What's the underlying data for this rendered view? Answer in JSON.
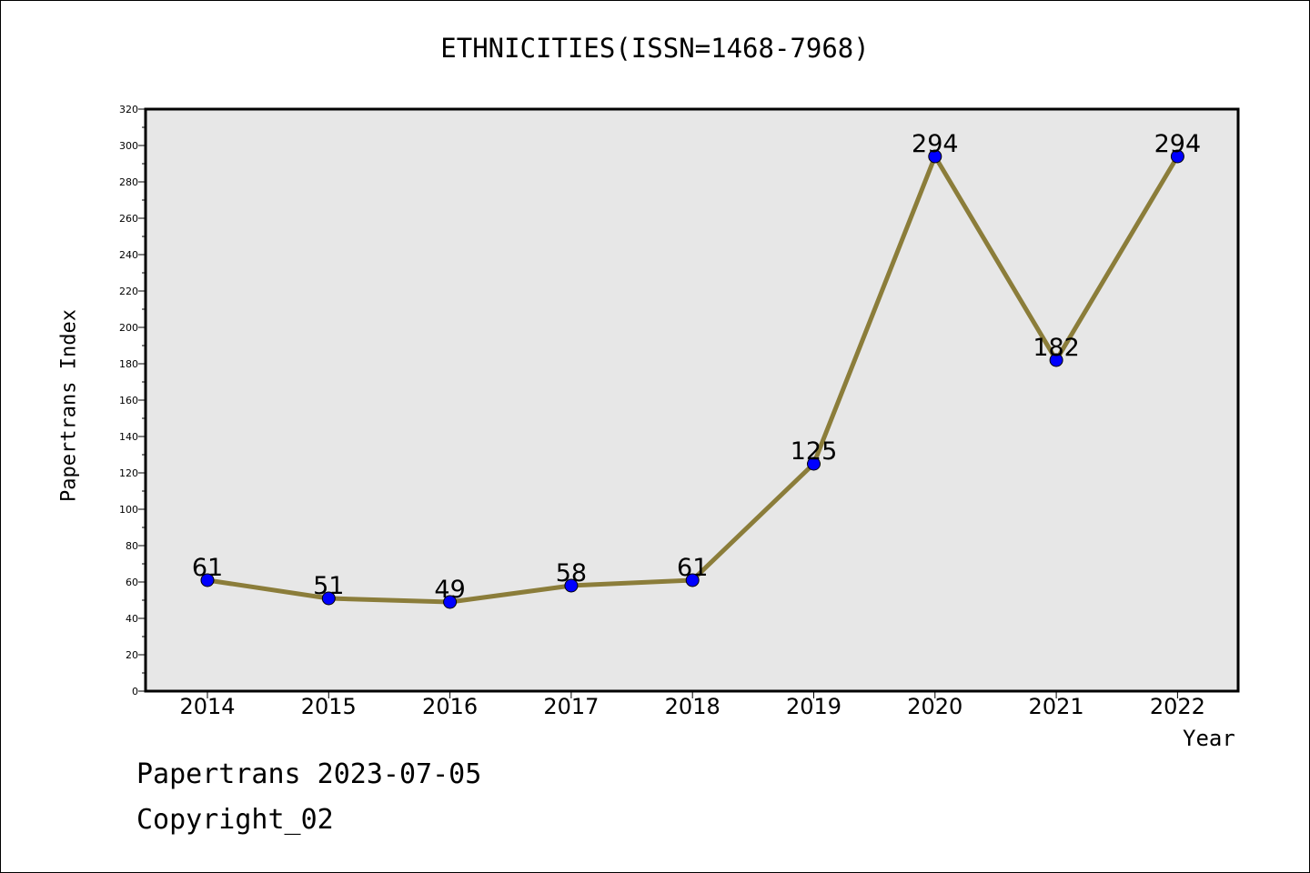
{
  "chart_data": {
    "type": "line",
    "title": "ETHNICITIES(ISSN=1468-7968)",
    "xlabel": "Year",
    "ylabel": "Papertrans Index",
    "categories": [
      "2014",
      "2015",
      "2016",
      "2017",
      "2018",
      "2019",
      "2020",
      "2021",
      "2022"
    ],
    "series": [
      {
        "values": [
          61,
          51,
          49,
          58,
          61,
          125,
          294,
          182,
          294
        ]
      }
    ],
    "ylim": [
      0,
      320
    ],
    "y_ticks": [
      0,
      20,
      40,
      60,
      80,
      100,
      120,
      140,
      160,
      180,
      200,
      220,
      240,
      260,
      280,
      300,
      320
    ],
    "grid": false,
    "line_color": "#8b7d3a",
    "marker_color": "#0000ff",
    "plot_background": "#e7e7e7"
  },
  "footer": {
    "line1": "Papertrans 2023-07-05",
    "line2": "Copyright_02"
  }
}
